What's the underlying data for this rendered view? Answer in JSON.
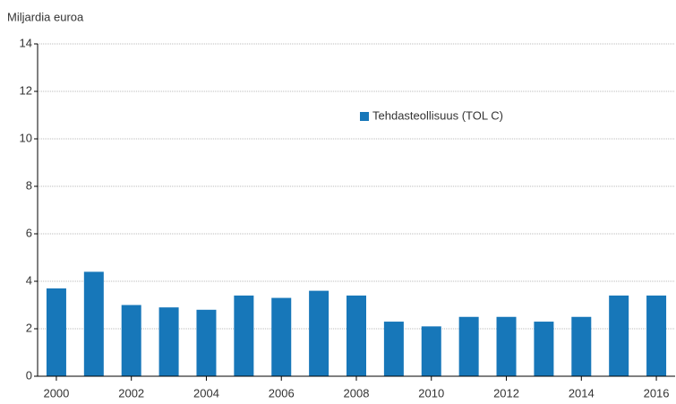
{
  "chart_data": {
    "type": "bar",
    "y_axis_label": "Miljardia euroa",
    "categories": [
      "2000",
      null,
      "2002",
      null,
      "2004",
      null,
      "2006",
      null,
      "2008",
      null,
      "2010",
      null,
      "2012",
      null,
      "2014",
      null,
      "2016"
    ],
    "series": [
      {
        "name": "Tehdasteollisuus (TOL C)",
        "color": "#1777b9",
        "values": [
          3.7,
          4.4,
          3.0,
          2.9,
          2.8,
          3.4,
          3.3,
          3.6,
          3.4,
          2.3,
          2.1,
          2.5,
          2.5,
          2.3,
          2.5,
          3.4,
          3.4
        ]
      }
    ],
    "ylim": [
      0,
      14
    ],
    "yticks": [
      0,
      2,
      4,
      6,
      8,
      10,
      12,
      14
    ],
    "grid": true,
    "legend": "top"
  }
}
